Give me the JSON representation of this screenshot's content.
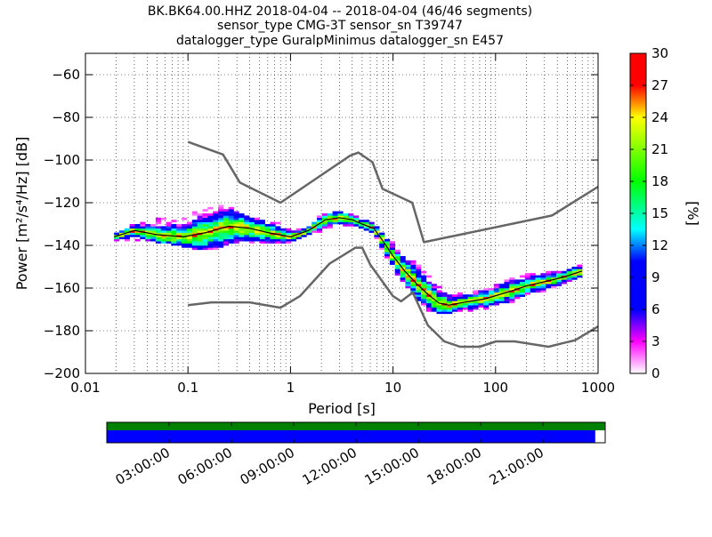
{
  "title": {
    "line1": "BK.BK64.00.HHZ   2018-04-04 -- 2018-04-04  (46/46 segments)",
    "line2": "sensor_type CMG-3T sensor_sn T39747",
    "line3": "datalogger_type GuralpMinimus datalogger_sn E457"
  },
  "colorbar": {
    "label": "[%]",
    "ticks": [
      "0",
      "3",
      "6",
      "9",
      "12",
      "15",
      "18",
      "21",
      "24",
      "27",
      "30"
    ],
    "min": 0,
    "max": 30
  },
  "timeline": {
    "ticks": [
      "03:00:00",
      "06:00:00",
      "09:00:00",
      "12:00:00",
      "15:00:00",
      "18:00:00",
      "21:00:00"
    ],
    "data_available_color": "#008000",
    "gaps_color": "#0000ff",
    "coverage_fraction": 0.98
  },
  "chart_data": {
    "type": "heatmap",
    "title": "BK.BK64.00.HHZ   2018-04-04 -- 2018-04-04  (46/46 segments)",
    "xlabel": "Period [s]",
    "ylabel": "Power [m²/s⁴/Hz] [dB]",
    "x_scale": "log",
    "xlim": [
      0.01,
      1000
    ],
    "ylim": [
      -200,
      -50
    ],
    "x_ticks": [
      "0.01",
      "0.1",
      "1",
      "10",
      "100",
      "1000"
    ],
    "y_ticks": [
      "−200",
      "−180",
      "−160",
      "−140",
      "−120",
      "−100",
      "−80",
      "−60"
    ],
    "x_tick_values": [
      0.01,
      0.1,
      1,
      10,
      100,
      1000
    ],
    "y_tick_values": [
      -200,
      -180,
      -160,
      -140,
      -120,
      -100,
      -80,
      -60
    ],
    "grid": true,
    "nhnm": {
      "period": [
        0.1,
        0.22,
        0.32,
        0.8,
        3.8,
        4.6,
        6.3,
        7.9,
        15.4,
        20,
        354.8,
        1000
      ],
      "power": [
        -91.5,
        -97.4,
        -110.5,
        -120,
        -98,
        -96.5,
        -101,
        -113.5,
        -120,
        -138.5,
        -126,
        -112.5
      ]
    },
    "nlnm": {
      "period": [
        0.1,
        0.17,
        0.4,
        0.8,
        1.24,
        2.4,
        4.3,
        5,
        6,
        10,
        12,
        15.6,
        21.9,
        31.6,
        45,
        70,
        101,
        154,
        328,
        600,
        1000
      ],
      "power": [
        -168,
        -166.7,
        -166.7,
        -169.2,
        -163.7,
        -148.6,
        -141.1,
        -141.1,
        -149,
        -163.8,
        -166.2,
        -162.1,
        -177.5,
        -185,
        -187.5,
        -187.5,
        -185,
        -185,
        -187.5,
        -184.4,
        -178
      ]
    },
    "mode_curve": {
      "period": [
        0.019,
        0.03,
        0.05,
        0.09,
        0.15,
        0.25,
        0.4,
        0.6,
        1,
        1.5,
        2.2,
        3,
        4,
        5,
        6.5,
        8,
        10,
        13,
        17,
        22,
        28,
        35,
        45,
        60,
        80,
        110,
        150,
        200,
        300,
        450,
        700
      ],
      "power": [
        -136,
        -133,
        -135,
        -136,
        -134,
        -131,
        -132,
        -134,
        -136,
        -133,
        -128,
        -127,
        -128,
        -130,
        -132,
        -138,
        -145,
        -152,
        -158,
        -163,
        -167,
        -168,
        -167,
        -166,
        -165,
        -163,
        -161,
        -159,
        -157,
        -155,
        -152
      ]
    },
    "pdf_spread": {
      "period": [
        0.019,
        0.03,
        0.05,
        0.09,
        0.15,
        0.25,
        0.4,
        0.6,
        1,
        1.5,
        2.2,
        3,
        4,
        5,
        6.5,
        8,
        10,
        13,
        17,
        22,
        28,
        35,
        45,
        60,
        80,
        110,
        150,
        200,
        300,
        450,
        700
      ],
      "low": [
        -138,
        -137,
        -138,
        -140,
        -142,
        -140,
        -139,
        -139,
        -138,
        -135,
        -132,
        -131,
        -131,
        -132,
        -136,
        -142,
        -150,
        -158,
        -165,
        -170,
        -172,
        -172,
        -171,
        -170,
        -170,
        -168,
        -166,
        -163,
        -161,
        -158,
        -155
      ],
      "high": [
        -134,
        -130,
        -128,
        -127,
        -123,
        -121,
        -125,
        -128,
        -132,
        -130,
        -125,
        -124,
        -125,
        -127,
        -130,
        -134,
        -139,
        -143,
        -148,
        -154,
        -158,
        -162,
        -163,
        -162,
        -161,
        -158,
        -155,
        -154,
        -153,
        -151,
        -149
      ]
    },
    "colors": {
      "model_lines": "#666666",
      "mode_line": "#000000"
    }
  }
}
